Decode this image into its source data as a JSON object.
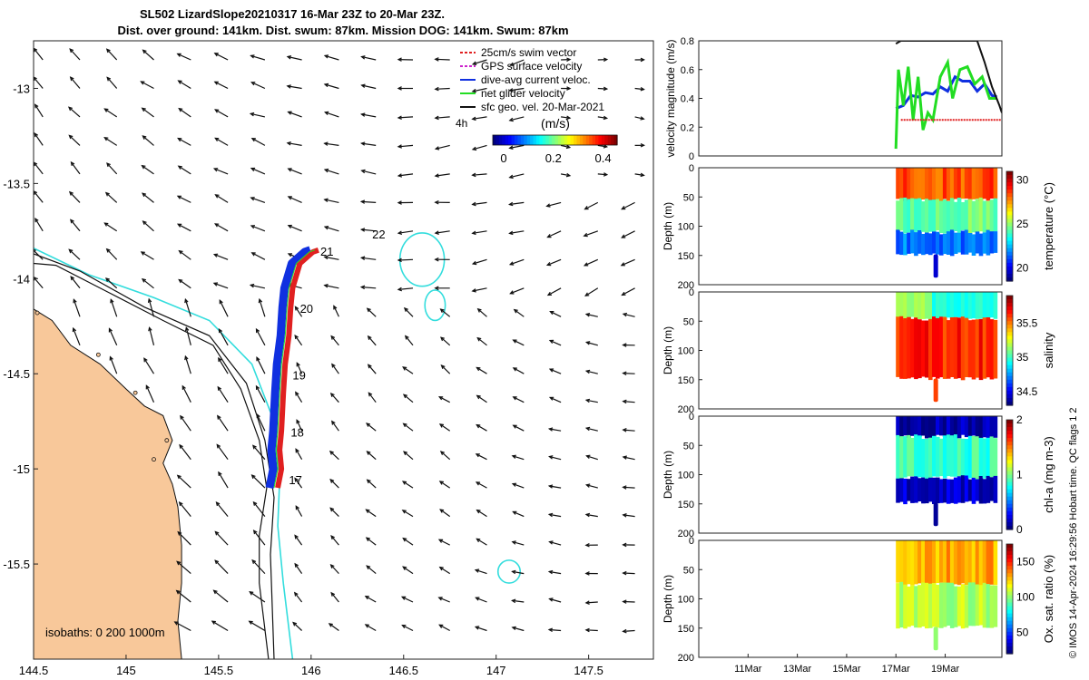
{
  "title_line1": "SL502 LizardSlope20210317 16-Mar 23Z to 20-Mar 23Z.",
  "title_line2": "Dist. over ground: 141km. Dist. swum: 87km. Mission DOG: 141km. Swum: 87km",
  "footer_text": "© IMOS 14-Apr-2024 16:29:56 Hobart time. QC flags 1  2",
  "colors": {
    "land": "#f8c89a",
    "isobath_200": "#111111",
    "isobath_cyan": "#33dddd",
    "dive_avg": "#1030e0",
    "net_glider": "#22dd22",
    "swim_vector": "#e02020",
    "gps": "#cc22cc"
  },
  "chart_data": [
    {
      "id": "map",
      "type": "scatter",
      "title": "SL502 LizardSlope20210317 16-Mar 23Z to 20-Mar 23Z.",
      "xlim": [
        144.5,
        147.85
      ],
      "ylim": [
        -16.0,
        -12.75
      ],
      "xticks": [
        144.5,
        145,
        145.5,
        146,
        146.5,
        147,
        147.5
      ],
      "xtick_labels": [
        "144.5",
        "145",
        "145.5",
        "146",
        "146.5",
        "147",
        "147.5"
      ],
      "yticks": [
        -13,
        -13.5,
        -14,
        -14.5,
        -15,
        -15.5
      ],
      "ytick_labels": [
        "-13",
        "-13.5",
        "-14",
        "-14.5",
        "-15",
        "-15.5"
      ],
      "legend": [
        {
          "label": "25cm/s swim vector",
          "color": "#e02020",
          "style": "dashed"
        },
        {
          "label": "GPS surface velocity",
          "color": "#cc22cc",
          "style": "dashed"
        },
        {
          "label": "dive-avg current veloc.",
          "color": "#1030e0",
          "style": "solid"
        },
        {
          "label": "net glider velocity",
          "color": "#22dd22",
          "style": "solid"
        },
        {
          "label": "sfc geo. vel. 20-Mar-2021",
          "color": "#111111",
          "style": "solid"
        }
      ],
      "legend_position": "top-right",
      "scale_label": "4h",
      "colorbar": {
        "label": "(m/s)",
        "ticks": [
          "0",
          "0.2",
          "0.4"
        ],
        "range": [
          0,
          0.5
        ]
      },
      "isobaths_label": "isobaths: 0   200   1000m",
      "day_labels": [
        {
          "text": "21",
          "lon": 146.05,
          "lat": -13.88
        },
        {
          "text": "20",
          "lon": 145.94,
          "lat": -14.18
        },
        {
          "text": "19",
          "lon": 145.9,
          "lat": -14.53
        },
        {
          "text": "18",
          "lon": 145.89,
          "lat": -14.83
        },
        {
          "text": "17",
          "lon": 145.88,
          "lat": -15.08
        },
        {
          "text": "22",
          "lon": 146.33,
          "lat": -13.79
        }
      ],
      "track": [
        {
          "lon": 145.8,
          "lat": -15.1
        },
        {
          "lon": 145.82,
          "lat": -15.0
        },
        {
          "lon": 145.81,
          "lat": -14.9
        },
        {
          "lon": 145.82,
          "lat": -14.8
        },
        {
          "lon": 145.83,
          "lat": -14.6
        },
        {
          "lon": 145.84,
          "lat": -14.45
        },
        {
          "lon": 145.86,
          "lat": -14.3
        },
        {
          "lon": 145.87,
          "lat": -14.15
        },
        {
          "lon": 145.88,
          "lat": -14.05
        },
        {
          "lon": 145.92,
          "lat": -13.92
        },
        {
          "lon": 145.99,
          "lat": -13.86
        },
        {
          "lon": 146.02,
          "lat": -13.85
        }
      ],
      "coast": [
        {
          "lon": 144.5,
          "lat": -14.16
        },
        {
          "lon": 144.6,
          "lat": -14.22
        },
        {
          "lon": 144.7,
          "lat": -14.35
        },
        {
          "lon": 144.86,
          "lat": -14.45
        },
        {
          "lon": 145.0,
          "lat": -14.58
        },
        {
          "lon": 145.1,
          "lat": -14.67
        },
        {
          "lon": 145.2,
          "lat": -14.72
        },
        {
          "lon": 145.25,
          "lat": -14.85
        },
        {
          "lon": 145.2,
          "lat": -14.97
        },
        {
          "lon": 145.25,
          "lat": -15.08
        },
        {
          "lon": 145.28,
          "lat": -15.2
        },
        {
          "lon": 145.3,
          "lat": -15.4
        },
        {
          "lon": 145.3,
          "lat": -15.6
        },
        {
          "lon": 145.28,
          "lat": -15.8
        },
        {
          "lon": 145.3,
          "lat": -16.0
        }
      ],
      "isobath_black": [
        {
          "lon": 144.5,
          "lat": -13.92
        },
        {
          "lon": 144.62,
          "lat": -13.93
        },
        {
          "lon": 144.9,
          "lat": -14.07
        },
        {
          "lon": 145.2,
          "lat": -14.22
        },
        {
          "lon": 145.47,
          "lat": -14.35
        },
        {
          "lon": 145.62,
          "lat": -14.58
        },
        {
          "lon": 145.72,
          "lat": -14.85
        },
        {
          "lon": 145.76,
          "lat": -15.1
        },
        {
          "lon": 145.72,
          "lat": -15.35
        },
        {
          "lon": 145.72,
          "lat": -15.6
        },
        {
          "lon": 145.77,
          "lat": -16.0
        }
      ],
      "isobath_black2": [
        {
          "lon": 144.5,
          "lat": -13.87
        },
        {
          "lon": 144.75,
          "lat": -13.96
        },
        {
          "lon": 145.1,
          "lat": -14.15
        },
        {
          "lon": 145.45,
          "lat": -14.3
        },
        {
          "lon": 145.65,
          "lat": -14.55
        },
        {
          "lon": 145.75,
          "lat": -14.85
        },
        {
          "lon": 145.8,
          "lat": -15.15
        },
        {
          "lon": 145.78,
          "lat": -15.45
        },
        {
          "lon": 145.8,
          "lat": -16.0
        }
      ],
      "isobath_cyan": [
        {
          "lon": 144.5,
          "lat": -13.84
        },
        {
          "lon": 144.8,
          "lat": -13.98
        },
        {
          "lon": 145.15,
          "lat": -14.1
        },
        {
          "lon": 145.45,
          "lat": -14.22
        },
        {
          "lon": 145.68,
          "lat": -14.45
        },
        {
          "lon": 145.8,
          "lat": -14.75
        },
        {
          "lon": 145.83,
          "lat": -15.05
        },
        {
          "lon": 145.82,
          "lat": -15.3
        },
        {
          "lon": 145.85,
          "lat": -15.6
        },
        {
          "lon": 145.9,
          "lat": -16.0
        }
      ],
      "reefs": [
        {
          "center": [
            146.6,
            -13.9
          ],
          "radius_deg": [
            0.12,
            0.14
          ]
        },
        {
          "center": [
            146.67,
            -14.14
          ],
          "radius_deg": [
            0.055,
            0.08
          ]
        },
        {
          "center": [
            147.07,
            -15.54
          ],
          "radius_deg": [
            0.06,
            0.06
          ]
        }
      ]
    },
    {
      "id": "velocity",
      "type": "line",
      "ylabel": "velocity magnitude (m/s)",
      "ylim": [
        0,
        0.8
      ],
      "yticks": [
        "0",
        "0.2",
        "0.4",
        "0.6",
        "0.8"
      ],
      "x_days": [
        9,
        21.3
      ],
      "series": [
        {
          "name": "dive-avg current veloc.",
          "color": "#1030e0",
          "x": [
            17.0,
            17.3,
            17.6,
            17.9,
            18.2,
            18.5,
            18.8,
            19.1,
            19.4,
            19.7,
            20.0,
            20.3,
            20.6,
            20.9,
            21.1
          ],
          "values": [
            0.33,
            0.35,
            0.42,
            0.41,
            0.44,
            0.43,
            0.48,
            0.45,
            0.55,
            0.52,
            0.52,
            0.45,
            0.5,
            0.42,
            0.41
          ]
        },
        {
          "name": "net glider velocity",
          "color": "#22dd22",
          "x": [
            17.0,
            17.1,
            17.3,
            17.5,
            17.7,
            17.9,
            18.1,
            18.3,
            18.5,
            18.8,
            19.1,
            19.3,
            19.6,
            19.9,
            20.2,
            20.5,
            20.8,
            21.1
          ],
          "values": [
            0.05,
            0.6,
            0.35,
            0.62,
            0.25,
            0.55,
            0.18,
            0.3,
            0.25,
            0.55,
            0.65,
            0.4,
            0.6,
            0.62,
            0.5,
            0.55,
            0.4,
            0.4
          ]
        },
        {
          "name": "25cm/s swim vector",
          "color": "#e02020",
          "x": [
            17.2,
            21.3
          ],
          "values": [
            0.25,
            0.25
          ]
        },
        {
          "name": "sfc geo. vel. 20-Mar-2021",
          "color": "#111111",
          "x": [
            17.0,
            17.2,
            20.3,
            20.6,
            20.9,
            21.2,
            21.3
          ],
          "values": [
            0.78,
            0.8,
            0.8,
            0.65,
            0.48,
            0.35,
            0.3
          ]
        }
      ]
    },
    {
      "id": "temperature",
      "type": "heatmap",
      "ylabel": "Depth (m)",
      "yticks": [
        "0",
        "50",
        "100",
        "150",
        "200"
      ],
      "colorbar_label": "temperature (°C)",
      "colorbar_ticks": [
        "30",
        "25",
        "20"
      ],
      "vmin": 18.5,
      "vmax": 31,
      "layers": [
        {
          "depth": [
            0,
            55
          ],
          "value": 28.5
        },
        {
          "depth": [
            55,
            110
          ],
          "value": 24.5
        },
        {
          "depth": [
            110,
            148
          ],
          "value": 21.5
        },
        {
          "depth": [
            148,
            188
          ],
          "value": 19.5
        }
      ]
    },
    {
      "id": "salinity",
      "type": "heatmap",
      "ylabel": "Depth (m)",
      "yticks": [
        "0",
        "50",
        "100",
        "150",
        "200"
      ],
      "colorbar_label": "salinity",
      "colorbar_ticks": [
        "35.5",
        "35",
        "34.5"
      ],
      "vmin": 34.3,
      "vmax": 35.9,
      "layers": [
        {
          "depth": [
            0,
            45
          ],
          "value": 35.05
        },
        {
          "depth": [
            45,
            148
          ],
          "value": 35.65
        },
        {
          "depth": [
            148,
            188
          ],
          "value": 35.6
        }
      ]
    },
    {
      "id": "chlorophyll",
      "type": "heatmap",
      "ylabel": "Depth (m)",
      "yticks": [
        "0",
        "50",
        "100",
        "150",
        "200"
      ],
      "colorbar_label": "chl-a (mg m-3)",
      "colorbar_ticks": [
        "2",
        "1",
        "0"
      ],
      "vmin": 0,
      "vmax": 2,
      "layers": [
        {
          "depth": [
            0,
            35
          ],
          "value": 0.08
        },
        {
          "depth": [
            35,
            105
          ],
          "value": 0.85
        },
        {
          "depth": [
            105,
            148
          ],
          "value": 0.15
        },
        {
          "depth": [
            148,
            188
          ],
          "value": 0.05
        }
      ]
    },
    {
      "id": "oxygen",
      "type": "heatmap",
      "ylabel": "Depth (m)",
      "yticks": [
        "0",
        "50",
        "100",
        "150",
        "200"
      ],
      "colorbar_label": "Ox. sat. ratio (%)",
      "colorbar_ticks": [
        "150",
        "100",
        "50"
      ],
      "vmin": 20,
      "vmax": 175,
      "xtick_labels": [
        "11Mar",
        "13Mar",
        "15Mar",
        "17Mar",
        "19Mar"
      ],
      "x_days_ticks": [
        11,
        13,
        15,
        17,
        19
      ],
      "layers": [
        {
          "depth": [
            0,
            75
          ],
          "value": 130
        },
        {
          "depth": [
            75,
            148
          ],
          "value": 105
        },
        {
          "depth": [
            148,
            188
          ],
          "value": 100
        }
      ]
    }
  ]
}
